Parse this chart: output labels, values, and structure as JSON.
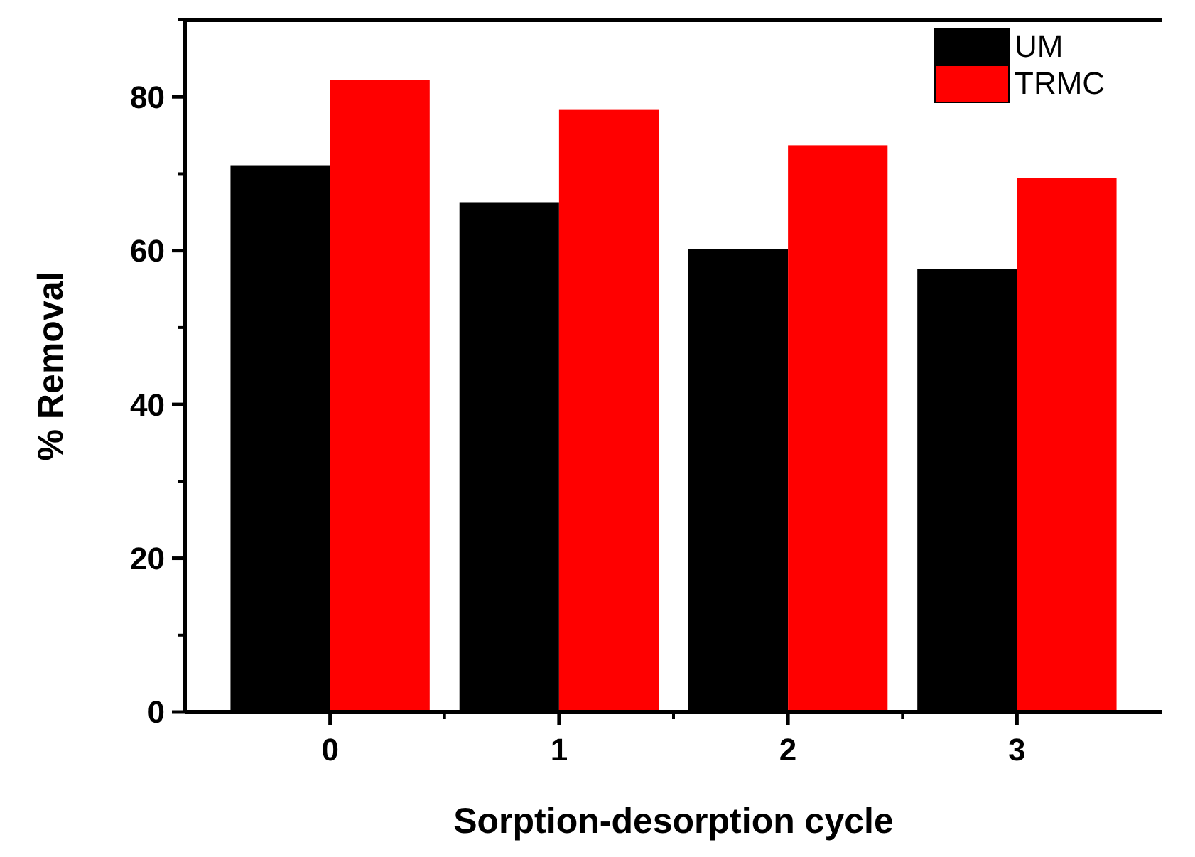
{
  "chart_data": {
    "type": "bar",
    "xlabel": "Sorption-desorption cycle",
    "ylabel": "% Removal",
    "categories": [
      "0",
      "1",
      "2",
      "3"
    ],
    "series": [
      {
        "name": "UM",
        "color": "#000000",
        "values": [
          71.1,
          66.3,
          60.2,
          57.6
        ]
      },
      {
        "name": "TRMC",
        "color": "#ff0000",
        "values": [
          82.2,
          78.3,
          73.7,
          69.4
        ]
      }
    ],
    "ylim": [
      0,
      90
    ],
    "yticks": [
      0,
      20,
      40,
      60,
      80
    ],
    "grid": false,
    "legend": "top right"
  }
}
